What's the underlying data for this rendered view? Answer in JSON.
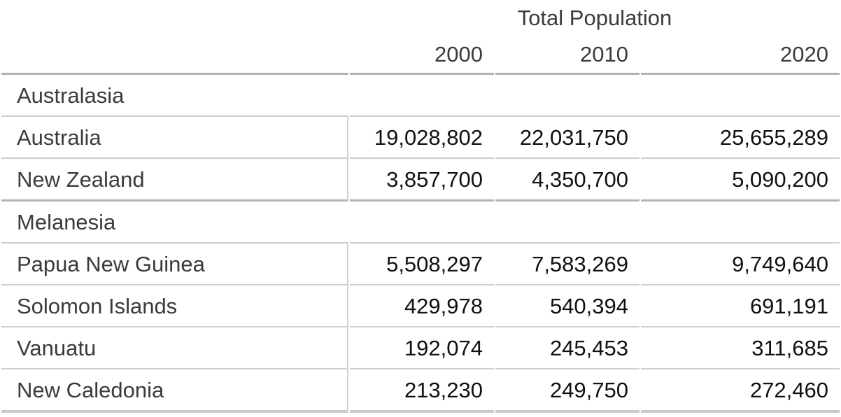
{
  "chart_data": {
    "type": "table",
    "title": "Total Population",
    "columns": [
      "2000",
      "2010",
      "2020"
    ],
    "sections": [
      {
        "name": "Australasia",
        "rows": [
          {
            "label": "Australia",
            "values": [
              19028802,
              22031750,
              25655289
            ],
            "display": [
              "19,028,802",
              "22,031,750",
              "25,655,289"
            ]
          },
          {
            "label": "New Zealand",
            "values": [
              3857700,
              4350700,
              5090200
            ],
            "display": [
              "3,857,700",
              "4,350,700",
              "5,090,200"
            ]
          }
        ]
      },
      {
        "name": "Melanesia",
        "rows": [
          {
            "label": "Papua New Guinea",
            "values": [
              5508297,
              7583269,
              9749640
            ],
            "display": [
              "5,508,297",
              "7,583,269",
              "9,749,640"
            ]
          },
          {
            "label": "Solomon Islands",
            "values": [
              429978,
              540394,
              691191
            ],
            "display": [
              "429,978",
              "540,394",
              "691,191"
            ]
          },
          {
            "label": "Vanuatu",
            "values": [
              192074,
              245453,
              311685
            ],
            "display": [
              "192,074",
              "245,453",
              "311,685"
            ]
          },
          {
            "label": "New Caledonia",
            "values": [
              213230,
              249750,
              272460
            ],
            "display": [
              "213,230",
              "249,750",
              "272,460"
            ]
          }
        ]
      }
    ],
    "layout": {
      "label_column_align": "left",
      "value_columns_align": "right",
      "title_span": "value-columns-only"
    }
  },
  "colors": {
    "background": "#ffffff",
    "label_text": "#3b3b3d",
    "number_text": "#111111",
    "row_line": "#cdcdcf",
    "section_line": "#b3b3b5",
    "bottom_line": "#cacacc",
    "column_divider": "#d2d2d4"
  }
}
